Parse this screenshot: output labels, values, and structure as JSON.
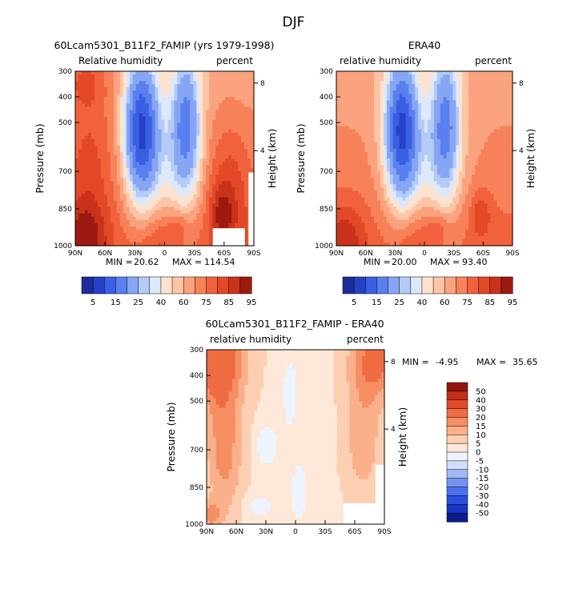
{
  "figure": {
    "title": "DJF"
  },
  "colors": {
    "relhum": [
      "#1c2c9a",
      "#2541c7",
      "#3a5fe2",
      "#5a80ef",
      "#86a6f5",
      "#b4cbf8",
      "#dde9fb",
      "#fde3cf",
      "#fcc5a6",
      "#faa37e",
      "#f7825a",
      "#f1623c",
      "#e34828",
      "#c9321b",
      "#9c1a10"
    ],
    "diff": [
      "#0b1b8c",
      "#1a34c3",
      "#2a4fe0",
      "#4a71ee",
      "#7593f3",
      "#a3b8f6",
      "#cfdefa",
      "#eef4fd",
      "#fde8d9",
      "#fccfb3",
      "#fab08a",
      "#f68e63",
      "#ef6c43",
      "#e04b2a",
      "#c2301a",
      "#8f1710"
    ]
  },
  "chart_data": [
    {
      "type": "heatmap",
      "title": "60Lcam5301_B11F2_FAMIP (yrs 1979-1998)",
      "left_label": "Relative humidity",
      "right_label": "percent",
      "ylabel": "Pressure (mb)",
      "ylabel_right": "Height (km)",
      "x_ticks": [
        "90N",
        "60N",
        "30N",
        "0",
        "30S",
        "60S",
        "90S"
      ],
      "y_ticks": [
        "300",
        "400",
        "500",
        "700",
        "850",
        "1000"
      ],
      "height_ticks": [
        "8",
        "4"
      ],
      "min_label": "MIN =",
      "min_value": "20.62",
      "max_label": "MAX =",
      "max_value": "114.54",
      "colorbar_labels": [
        "5",
        "15",
        "25",
        "40",
        "60",
        "75",
        "85",
        "95"
      ]
    },
    {
      "type": "heatmap",
      "title": "ERA40",
      "left_label": "relative humidity",
      "right_label": "percent",
      "ylabel": "Pressure (mb)",
      "ylabel_right": "Height (km)",
      "x_ticks": [
        "90N",
        "60N",
        "30N",
        "0",
        "30S",
        "60S",
        "90S"
      ],
      "y_ticks": [
        "300",
        "400",
        "500",
        "700",
        "850",
        "1000"
      ],
      "height_ticks": [
        "8",
        "4"
      ],
      "min_label": "MIN =",
      "min_value": "20.00",
      "max_label": "MAX =",
      "max_value": "93.40",
      "colorbar_labels": [
        "5",
        "15",
        "25",
        "40",
        "60",
        "75",
        "85",
        "95"
      ]
    },
    {
      "type": "heatmap",
      "title": "60Lcam5301_B11F2_FAMIP - ERA40",
      "left_label": "relative humidity",
      "right_label": "percent",
      "ylabel": "Pressure (mb)",
      "ylabel_right": "Height (km)",
      "x_ticks": [
        "90N",
        "60N",
        "30N",
        "0",
        "30S",
        "60S",
        "90S"
      ],
      "y_ticks": [
        "300",
        "400",
        "500",
        "700",
        "850",
        "1000"
      ],
      "height_ticks": [
        "8",
        "4"
      ],
      "min_label": "MIN =",
      "min_value": "-4.95",
      "max_label": "MAX =",
      "max_value": "35.65",
      "colorbar_labels": [
        "50",
        "40",
        "30",
        "20",
        "15",
        "10",
        "5",
        "0",
        "-5",
        "-10",
        "-15",
        "-20",
        "-30",
        "-40",
        "-50"
      ]
    }
  ]
}
